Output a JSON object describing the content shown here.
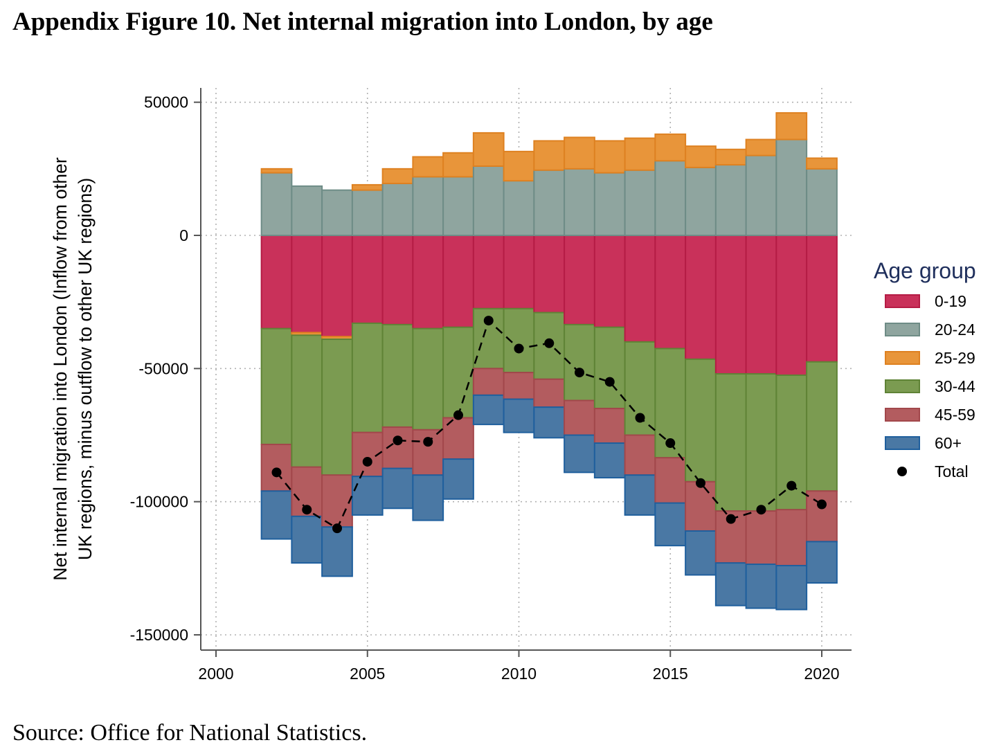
{
  "figure": {
    "title": "Appendix Figure 10. Net internal migration into London, by age",
    "source": "Source: Office for National Statistics."
  },
  "chart_data": {
    "type": "bar",
    "stacked": true,
    "title": "Appendix Figure 10. Net internal migration into London, by age",
    "ylabel_lines": [
      "Net internal migration into London (Inflow from other",
      "UK regions, minus outflow to other UK regions)"
    ],
    "xlabel": "",
    "xlim": [
      2000,
      2021
    ],
    "ylim": [
      -155000,
      55000
    ],
    "xticks": [
      2000,
      2005,
      2010,
      2015,
      2020
    ],
    "yticks": [
      50000,
      0,
      -50000,
      -100000,
      -150000
    ],
    "grid": true,
    "legend_title": "Age group",
    "legend_position": "right",
    "x": [
      2002,
      2003,
      2004,
      2005,
      2006,
      2007,
      2008,
      2009,
      2010,
      2011,
      2012,
      2013,
      2014,
      2015,
      2016,
      2017,
      2018,
      2019,
      2020
    ],
    "series": [
      {
        "name": "0-19",
        "color": "#c9315a",
        "edge": "#b51c45",
        "values": [
          -35000,
          -36500,
          -38000,
          -33000,
          -33500,
          -35000,
          -34500,
          -27500,
          -27500,
          -29000,
          -33500,
          -34500,
          -40000,
          -42500,
          -46500,
          -52000,
          -52000,
          -52500,
          -47500
        ]
      },
      {
        "name": "20-24",
        "color": "#8fa59f",
        "edge": "#6e8c86",
        "values": [
          23500,
          18500,
          17000,
          17000,
          19500,
          22000,
          22000,
          26000,
          20500,
          24500,
          25000,
          23500,
          24500,
          28000,
          25500,
          26500,
          30000,
          36000,
          25000
        ]
      },
      {
        "name": "25-29",
        "color": "#e8953a",
        "edge": "#de8121",
        "values": [
          1500,
          -1000,
          -1000,
          2000,
          5500,
          7500,
          9000,
          12500,
          11000,
          11000,
          11800,
          12000,
          12000,
          10000,
          8000,
          5800,
          6000,
          10000,
          4000
        ]
      },
      {
        "name": "30-44",
        "color": "#7b9b51",
        "edge": "#5f8336",
        "values": [
          -43500,
          -49500,
          -51000,
          -41000,
          -38500,
          -38000,
          -34000,
          -22500,
          -24000,
          -25000,
          -28500,
          -30500,
          -35000,
          -41000,
          -46000,
          -51500,
          -51500,
          -50500,
          -48500
        ]
      },
      {
        "name": "45-59",
        "color": "#b35c5f",
        "edge": "#a2474b",
        "values": [
          -17500,
          -18500,
          -19500,
          -16500,
          -15500,
          -17000,
          -15500,
          -10000,
          -10000,
          -10500,
          -13000,
          -13000,
          -15000,
          -17000,
          -18500,
          -19500,
          -20000,
          -21000,
          -19000
        ]
      },
      {
        "name": "60+",
        "color": "#4a78a4",
        "edge": "#1f5f9d",
        "values": [
          -18000,
          -17500,
          -18500,
          -14500,
          -15000,
          -17000,
          -15000,
          -11000,
          -12500,
          -11500,
          -14000,
          -13000,
          -15000,
          -16000,
          -16500,
          -16000,
          -16500,
          -16500,
          -15500
        ]
      }
    ],
    "total": {
      "name": "Total",
      "values": [
        -89000,
        -103000,
        -110000,
        -85000,
        -77000,
        -77500,
        -67500,
        -32000,
        -42500,
        -40500,
        -51500,
        -55000,
        -68500,
        -78000,
        -93000,
        -106500,
        -103000,
        -94000,
        -101000
      ]
    }
  }
}
